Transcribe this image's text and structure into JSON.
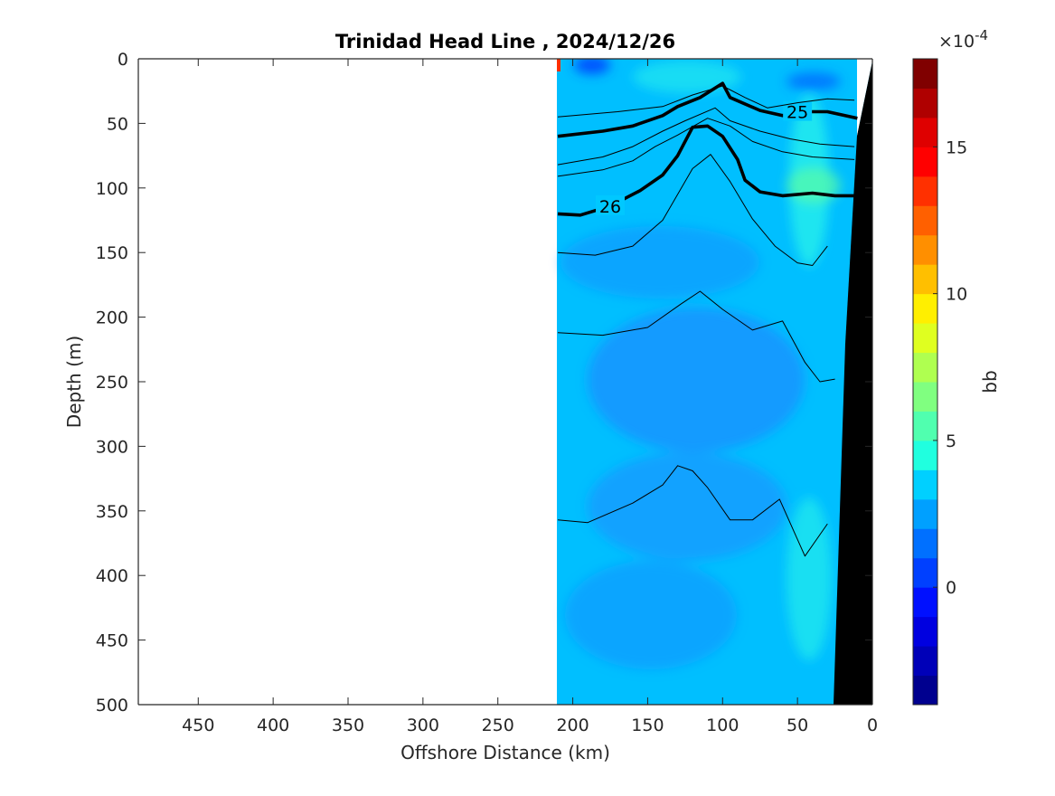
{
  "chart_data": {
    "type": "heatmap",
    "title": "Trinidad Head Line , 2024/12/26",
    "xlabel": "Offshore Distance (km)",
    "ylabel": "Depth (m)",
    "xlim": [
      490,
      0
    ],
    "ylim": [
      500,
      0
    ],
    "x_reversed": true,
    "y_reversed": true,
    "x_ticks": [
      450,
      400,
      350,
      300,
      250,
      200,
      150,
      100,
      50,
      0
    ],
    "x_tick_labels": [
      "450",
      "400",
      "350",
      "300",
      "250",
      "200",
      "150",
      "100",
      "50",
      "0"
    ],
    "y_ticks": [
      0,
      50,
      100,
      150,
      200,
      250,
      300,
      350,
      400,
      450,
      500
    ],
    "y_tick_labels": [
      "0",
      "50",
      "100",
      "150",
      "200",
      "250",
      "300",
      "350",
      "400",
      "450",
      "500"
    ],
    "data_x_range": [
      210,
      0
    ],
    "colorbar": {
      "label": "bb",
      "exponent_label": "×10",
      "exponent_power": "-4",
      "limits": [
        -4,
        18
      ],
      "ticks": [
        0,
        5,
        10,
        15
      ],
      "tick_labels": [
        "0",
        "5",
        "10",
        "15"
      ],
      "levels": [
        -4,
        -3,
        -2,
        -1,
        0,
        1,
        2,
        3,
        4,
        5,
        6,
        7,
        8,
        9,
        10,
        11,
        12,
        13,
        14,
        15,
        16,
        17,
        18
      ],
      "colors": [
        "#00008f",
        "#0000b8",
        "#0000e0",
        "#0010ff",
        "#0040ff",
        "#0070ff",
        "#00a0ff",
        "#00d0ff",
        "#20ffdf",
        "#50ffaf",
        "#80ff80",
        "#afff50",
        "#dfff20",
        "#ffef00",
        "#ffbf00",
        "#ff8f00",
        "#ff6000",
        "#ff3000",
        "#ff0000",
        "#df0000",
        "#af0000",
        "#800000"
      ]
    },
    "density_contours": [
      {
        "label": "25",
        "bold": true,
        "x": [
          210,
          180,
          160,
          140,
          130,
          115,
          100,
          95,
          75,
          60,
          50,
          30,
          10
        ],
        "y": [
          60,
          56,
          52,
          44,
          37,
          30,
          19,
          30,
          40,
          44,
          41,
          41,
          46
        ]
      },
      {
        "label": "26",
        "bold": true,
        "x": [
          210,
          195,
          175,
          155,
          140,
          130,
          120,
          110,
          100,
          90,
          85,
          75,
          60,
          40,
          25,
          10
        ],
        "y": [
          120,
          121,
          114,
          102,
          90,
          75,
          53,
          52,
          60,
          78,
          94,
          103,
          106,
          104,
          106,
          106
        ]
      },
      {
        "label": "",
        "bold": false,
        "x": [
          210,
          170,
          140,
          120,
          100,
          85,
          70,
          50,
          30,
          12
        ],
        "y": [
          45,
          41,
          37,
          28,
          21,
          30,
          38,
          34,
          31,
          32
        ]
      },
      {
        "label": "",
        "bold": false,
        "x": [
          210,
          180,
          160,
          140,
          125,
          105,
          95,
          75,
          55,
          35,
          12
        ],
        "y": [
          82,
          76,
          68,
          56,
          48,
          38,
          48,
          56,
          62,
          66,
          68
        ]
      },
      {
        "label": "",
        "bold": false,
        "x": [
          210,
          180,
          160,
          145,
          130,
          110,
          95,
          80,
          60,
          40,
          12
        ],
        "y": [
          91,
          86,
          79,
          68,
          59,
          46,
          52,
          64,
          72,
          76,
          78
        ]
      },
      {
        "label": "",
        "bold": false,
        "x": [
          210,
          185,
          160,
          140,
          120,
          108,
          95,
          80,
          65,
          50,
          40,
          30
        ],
        "y": [
          150,
          152,
          145,
          125,
          85,
          74,
          95,
          124,
          145,
          158,
          160,
          145
        ]
      },
      {
        "label": "",
        "bold": false,
        "x": [
          210,
          180,
          150,
          128,
          115,
          100,
          80,
          60,
          45,
          35,
          25
        ],
        "y": [
          212,
          214,
          208,
          190,
          180,
          194,
          210,
          203,
          235,
          250,
          248
        ]
      },
      {
        "label": "",
        "bold": false,
        "x": [
          210,
          190,
          160,
          140,
          130,
          120,
          110,
          95,
          80,
          62,
          45,
          30
        ],
        "y": [
          357,
          359,
          344,
          330,
          315,
          319,
          332,
          357,
          357,
          341,
          385,
          360
        ]
      }
    ]
  }
}
